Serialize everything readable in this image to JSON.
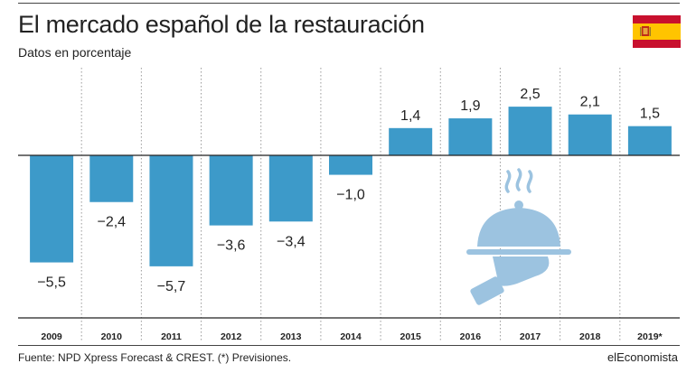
{
  "header": {
    "title": "El mercado español de la restauración",
    "subtitle": "Datos en porcentaje"
  },
  "footer": {
    "source": "Fuente: NPD Xpress Forecast & CREST. (*) Previsiones.",
    "brand": "elEconomista"
  },
  "flag_icon": "spain-flag-icon",
  "illustration_icon": "serving-tray-hand-icon",
  "colors": {
    "bar": "#3d9ac9",
    "illustration": "#9cc3e0",
    "flag_red": "#c8102e",
    "flag_yellow": "#ffc400"
  },
  "chart_data": {
    "type": "bar",
    "categories": [
      "2009",
      "2010",
      "2011",
      "2012",
      "2013",
      "2014",
      "2015",
      "2016",
      "2017",
      "2018",
      "2019*"
    ],
    "values": [
      -5.5,
      -2.4,
      -5.7,
      -3.6,
      -3.4,
      -1.0,
      1.4,
      1.9,
      2.5,
      2.1,
      1.5
    ],
    "value_labels": [
      "−5,5",
      "−2,4",
      "−5,7",
      "−3,6",
      "−3,4",
      "−1,0",
      "1,4",
      "1,9",
      "2,5",
      "2,1",
      "1,5"
    ],
    "title": "El mercado español de la restauración",
    "ylabel": "Datos en porcentaje",
    "ylim": [
      -8.35,
      4.5
    ],
    "grid": "vertical-dotted"
  }
}
